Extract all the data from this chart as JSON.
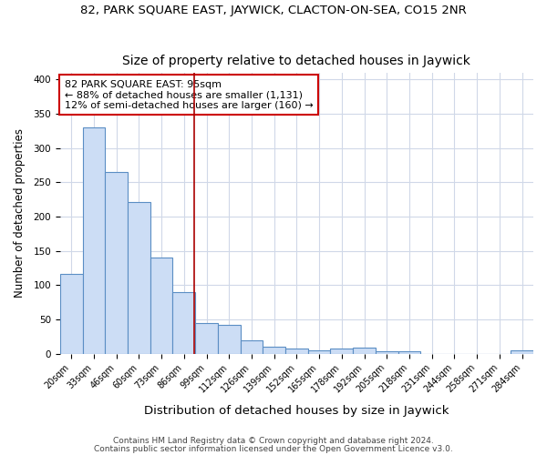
{
  "title_top": "82, PARK SQUARE EAST, JAYWICK, CLACTON-ON-SEA, CO15 2NR",
  "title_sub": "Size of property relative to detached houses in Jaywick",
  "xlabel": "Distribution of detached houses by size in Jaywick",
  "ylabel": "Number of detached properties",
  "categories": [
    "20sqm",
    "33sqm",
    "46sqm",
    "60sqm",
    "73sqm",
    "86sqm",
    "99sqm",
    "112sqm",
    "126sqm",
    "139sqm",
    "152sqm",
    "165sqm",
    "178sqm",
    "192sqm",
    "205sqm",
    "218sqm",
    "231sqm",
    "244sqm",
    "258sqm",
    "271sqm",
    "284sqm"
  ],
  "values": [
    117,
    330,
    265,
    221,
    140,
    90,
    45,
    42,
    20,
    10,
    7,
    5,
    8,
    9,
    3,
    4,
    0,
    0,
    0,
    0,
    5
  ],
  "bar_color": "#ccddf5",
  "bar_edge_color": "#5b8ec4",
  "vline_x": 5.46,
  "vline_color": "#aa0000",
  "annotation_line1": "82 PARK SQUARE EAST: 95sqm",
  "annotation_line2": "← 88% of detached houses are smaller (1,131)",
  "annotation_line3": "12% of semi-detached houses are larger (160) →",
  "annotation_box_color": "white",
  "annotation_box_edge": "#cc0000",
  "ylim": [
    0,
    410
  ],
  "yticks": [
    0,
    50,
    100,
    150,
    200,
    250,
    300,
    350,
    400
  ],
  "footer1": "Contains HM Land Registry data © Crown copyright and database right 2024.",
  "footer2": "Contains public sector information licensed under the Open Government Licence v3.0.",
  "bg_color": "#ffffff",
  "plot_bg_color": "#ffffff",
  "grid_color": "#d0d8e8",
  "title_fontsize": 9.5,
  "subtitle_fontsize": 10,
  "tick_fontsize": 7,
  "ylabel_fontsize": 8.5,
  "xlabel_fontsize": 9.5,
  "annotation_fontsize": 8,
  "footer_fontsize": 6.5
}
